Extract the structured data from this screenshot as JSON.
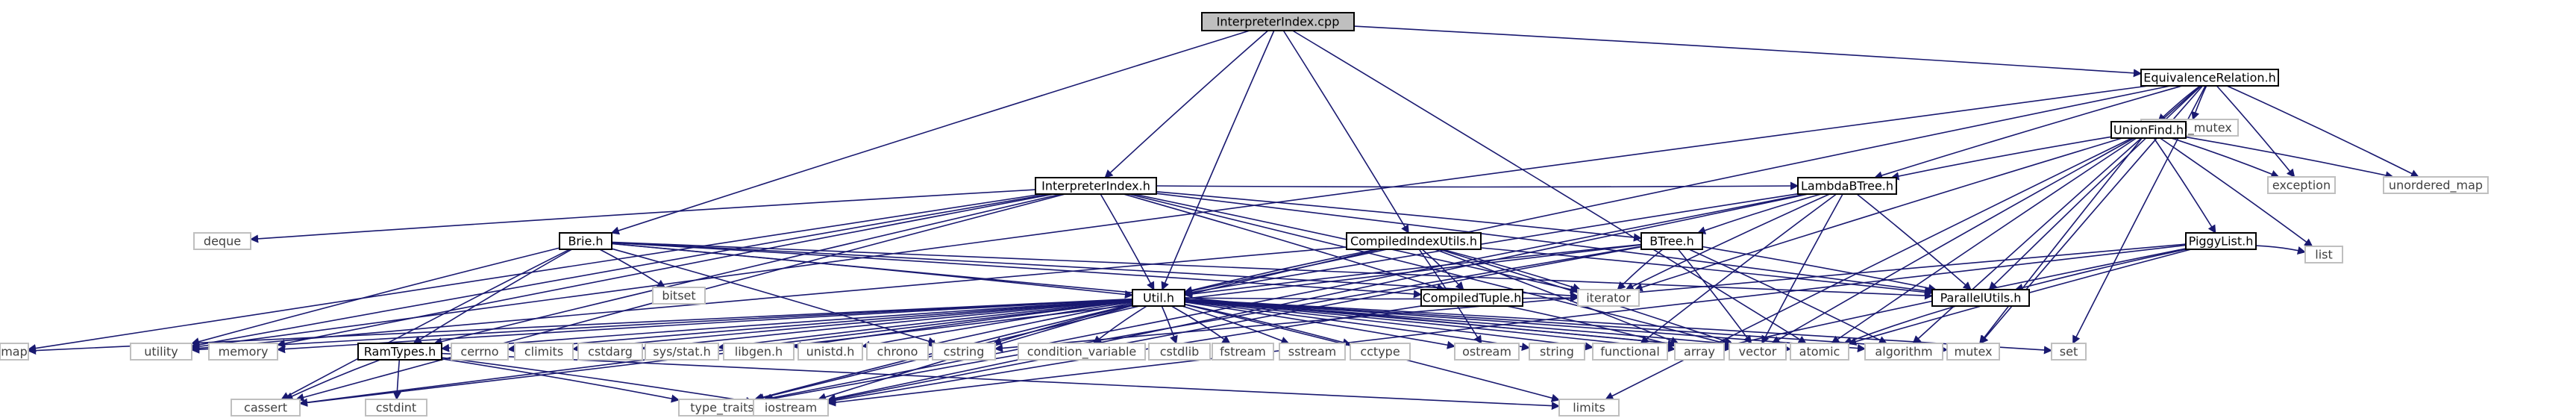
{
  "page": {
    "title": "InterpreterIndex.cpp"
  },
  "colors": {
    "background": "#ffffff",
    "edge": "#191970",
    "header_fill": "#bfbfbf",
    "header_stroke": "#000000",
    "internal_stroke": "#000000",
    "system_stroke": "#bfbfbf",
    "system_text": "#404040",
    "internal_text": "#000000"
  },
  "nodes": [
    {
      "id": "root",
      "label": "InterpreterIndex.cpp",
      "kind": "header"
    },
    {
      "id": "eqrel",
      "label": "EquivalenceRelation.h",
      "kind": "internal"
    },
    {
      "id": "shared_mutex",
      "label": "shared_mutex",
      "kind": "system"
    },
    {
      "id": "unionfind",
      "label": "UnionFind.h",
      "kind": "internal"
    },
    {
      "id": "interpidx",
      "label": "InterpreterIndex.h",
      "kind": "internal"
    },
    {
      "id": "lambdabtree",
      "label": "LambdaBTree.h",
      "kind": "internal"
    },
    {
      "id": "exception",
      "label": "exception",
      "kind": "system"
    },
    {
      "id": "unordered_map",
      "label": "unordered_map",
      "kind": "system"
    },
    {
      "id": "deque",
      "label": "deque",
      "kind": "system"
    },
    {
      "id": "compiledidx",
      "label": "CompiledIndexUtils.h",
      "kind": "internal"
    },
    {
      "id": "brie",
      "label": "Brie.h",
      "kind": "internal"
    },
    {
      "id": "btree",
      "label": "BTree.h",
      "kind": "internal"
    },
    {
      "id": "piggylist",
      "label": "PiggyList.h",
      "kind": "internal"
    },
    {
      "id": "list",
      "label": "list",
      "kind": "system"
    },
    {
      "id": "bitset",
      "label": "bitset",
      "kind": "system"
    },
    {
      "id": "compiledtuple",
      "label": "CompiledTuple.h",
      "kind": "internal"
    },
    {
      "id": "iterator",
      "label": "iterator",
      "kind": "system"
    },
    {
      "id": "parallelutils",
      "label": "ParallelUtils.h",
      "kind": "internal"
    },
    {
      "id": "utilh",
      "label": "Util.h",
      "kind": "internal"
    },
    {
      "id": "map",
      "label": "map",
      "kind": "system"
    },
    {
      "id": "utility",
      "label": "utility",
      "kind": "system"
    },
    {
      "id": "memory",
      "label": "memory",
      "kind": "system"
    },
    {
      "id": "ramtypes",
      "label": "RamTypes.h",
      "kind": "internal"
    },
    {
      "id": "cerrno",
      "label": "cerrno",
      "kind": "system"
    },
    {
      "id": "climits",
      "label": "climits",
      "kind": "system"
    },
    {
      "id": "cstdarg",
      "label": "cstdarg",
      "kind": "system"
    },
    {
      "id": "sysstat",
      "label": "sys/stat.h",
      "kind": "system"
    },
    {
      "id": "libgen",
      "label": "libgen.h",
      "kind": "system"
    },
    {
      "id": "unistd",
      "label": "unistd.h",
      "kind": "system"
    },
    {
      "id": "chrono",
      "label": "chrono",
      "kind": "system"
    },
    {
      "id": "cstring",
      "label": "cstring",
      "kind": "system"
    },
    {
      "id": "condvar",
      "label": "condition_variable",
      "kind": "system"
    },
    {
      "id": "cstdlib",
      "label": "cstdlib",
      "kind": "system"
    },
    {
      "id": "fstream",
      "label": "fstream",
      "kind": "system"
    },
    {
      "id": "sstream",
      "label": "sstream",
      "kind": "system"
    },
    {
      "id": "cctype",
      "label": "cctype",
      "kind": "system"
    },
    {
      "id": "ostream",
      "label": "ostream",
      "kind": "system"
    },
    {
      "id": "string",
      "label": "string",
      "kind": "system"
    },
    {
      "id": "functional",
      "label": "functional",
      "kind": "system"
    },
    {
      "id": "array",
      "label": "array",
      "kind": "system"
    },
    {
      "id": "vector",
      "label": "vector",
      "kind": "system"
    },
    {
      "id": "atomic",
      "label": "atomic",
      "kind": "system"
    },
    {
      "id": "algorithm",
      "label": "algorithm",
      "kind": "system"
    },
    {
      "id": "mutex",
      "label": "mutex",
      "kind": "system"
    },
    {
      "id": "set",
      "label": "set",
      "kind": "system"
    },
    {
      "id": "cassert",
      "label": "cassert",
      "kind": "system"
    },
    {
      "id": "cstdint",
      "label": "cstdint",
      "kind": "system"
    },
    {
      "id": "type_traits",
      "label": "type_traits",
      "kind": "system"
    },
    {
      "id": "iostream",
      "label": "iostream",
      "kind": "system"
    },
    {
      "id": "limits",
      "label": "limits",
      "kind": "system"
    }
  ],
  "edges": [
    [
      "root",
      "eqrel"
    ],
    [
      "root",
      "interpidx"
    ],
    [
      "root",
      "brie"
    ],
    [
      "root",
      "compiledidx"
    ],
    [
      "root",
      "utilh"
    ],
    [
      "root",
      "atomic"
    ],
    [
      "eqrel",
      "shared_mutex"
    ],
    [
      "eqrel",
      "unionfind"
    ],
    [
      "eqrel",
      "lambdabtree"
    ],
    [
      "eqrel",
      "parallelutils"
    ],
    [
      "eqrel",
      "exception"
    ],
    [
      "eqrel",
      "unordered_map"
    ],
    [
      "eqrel",
      "utility"
    ],
    [
      "eqrel",
      "utilh"
    ],
    [
      "eqrel",
      "set"
    ],
    [
      "eqrel",
      "mutex"
    ],
    [
      "eqrel",
      "algorithm"
    ],
    [
      "unionfind",
      "lambdabtree"
    ],
    [
      "unionfind",
      "piggylist"
    ],
    [
      "unionfind",
      "list"
    ],
    [
      "unionfind",
      "exception"
    ],
    [
      "unionfind",
      "unordered_map"
    ],
    [
      "unionfind",
      "iterator"
    ],
    [
      "unionfind",
      "vector"
    ],
    [
      "unionfind",
      "atomic"
    ],
    [
      "unionfind",
      "mutex"
    ],
    [
      "unionfind",
      "limits"
    ],
    [
      "lambdabtree",
      "btree"
    ],
    [
      "lambdabtree",
      "parallelutils"
    ],
    [
      "lambdabtree",
      "iterator"
    ],
    [
      "lambdabtree",
      "functional"
    ],
    [
      "lambdabtree",
      "vector"
    ],
    [
      "lambdabtree",
      "iostream"
    ],
    [
      "lambdabtree",
      "type_traits"
    ],
    [
      "lambdabtree",
      "utilh"
    ],
    [
      "interpidx",
      "deque"
    ],
    [
      "interpidx",
      "lambdabtree"
    ],
    [
      "interpidx",
      "btree"
    ],
    [
      "interpidx",
      "compiledtuple"
    ],
    [
      "interpidx",
      "parallelutils"
    ],
    [
      "interpidx",
      "utilh"
    ],
    [
      "interpidx",
      "map"
    ],
    [
      "interpidx",
      "memory"
    ],
    [
      "interpidx",
      "ramtypes"
    ],
    [
      "interpidx",
      "utility"
    ],
    [
      "interpidx",
      "cassert"
    ],
    [
      "interpidx",
      "vector"
    ],
    [
      "interpidx",
      "iterator"
    ],
    [
      "compiledidx",
      "compiledtuple"
    ],
    [
      "compiledidx",
      "iterator"
    ],
    [
      "compiledidx",
      "parallelutils"
    ],
    [
      "compiledidx",
      "utilh"
    ],
    [
      "compiledidx",
      "ostream"
    ],
    [
      "compiledidx",
      "type_traits"
    ],
    [
      "compiledidx",
      "vector"
    ],
    [
      "compiledidx",
      "utility"
    ],
    [
      "compiledidx",
      "array"
    ],
    [
      "brie",
      "bitset"
    ],
    [
      "brie",
      "compiledtuple"
    ],
    [
      "brie",
      "iterator"
    ],
    [
      "brie",
      "parallelutils"
    ],
    [
      "brie",
      "utilh"
    ],
    [
      "brie",
      "ramtypes"
    ],
    [
      "brie",
      "cassert"
    ],
    [
      "brie",
      "utility"
    ],
    [
      "brie",
      "cstring"
    ],
    [
      "brie",
      "vector"
    ],
    [
      "btree",
      "parallelutils"
    ],
    [
      "btree",
      "utilh"
    ],
    [
      "btree",
      "iterator"
    ],
    [
      "btree",
      "vector"
    ],
    [
      "btree",
      "iostream"
    ],
    [
      "btree",
      "type_traits"
    ],
    [
      "btree",
      "cassert"
    ],
    [
      "btree",
      "algorithm"
    ],
    [
      "piggylist",
      "parallelutils"
    ],
    [
      "piggylist",
      "list"
    ],
    [
      "piggylist",
      "atomic"
    ],
    [
      "piggylist",
      "iostream"
    ],
    [
      "piggylist",
      "array"
    ],
    [
      "piggylist",
      "cstring"
    ],
    [
      "compiledtuple",
      "array"
    ],
    [
      "compiledtuple",
      "iostream"
    ],
    [
      "parallelutils",
      "atomic"
    ],
    [
      "utilh",
      "map"
    ],
    [
      "utilh",
      "utility"
    ],
    [
      "utilh",
      "memory"
    ],
    [
      "utilh",
      "ramtypes"
    ],
    [
      "utilh",
      "cerrno"
    ],
    [
      "utilh",
      "climits"
    ],
    [
      "utilh",
      "cstdarg"
    ],
    [
      "utilh",
      "sysstat"
    ],
    [
      "utilh",
      "libgen"
    ],
    [
      "utilh",
      "unistd"
    ],
    [
      "utilh",
      "chrono"
    ],
    [
      "utilh",
      "cstring"
    ],
    [
      "utilh",
      "condvar"
    ],
    [
      "utilh",
      "cstdlib"
    ],
    [
      "utilh",
      "fstream"
    ],
    [
      "utilh",
      "sstream"
    ],
    [
      "utilh",
      "cctype"
    ],
    [
      "utilh",
      "ostream"
    ],
    [
      "utilh",
      "string"
    ],
    [
      "utilh",
      "functional"
    ],
    [
      "utilh",
      "array"
    ],
    [
      "utilh",
      "vector"
    ],
    [
      "utilh",
      "atomic"
    ],
    [
      "utilh",
      "algorithm"
    ],
    [
      "utilh",
      "mutex"
    ],
    [
      "utilh",
      "set"
    ],
    [
      "utilh",
      "cassert"
    ],
    [
      "utilh",
      "iostream"
    ],
    [
      "utilh",
      "type_traits"
    ],
    [
      "utilh",
      "limits"
    ],
    [
      "utilh",
      "iterator"
    ],
    [
      "ramtypes",
      "cassert"
    ],
    [
      "ramtypes",
      "cstdint"
    ],
    [
      "ramtypes",
      "type_traits"
    ],
    [
      "ramtypes",
      "iostream"
    ],
    [
      "ramtypes",
      "limits"
    ]
  ]
}
